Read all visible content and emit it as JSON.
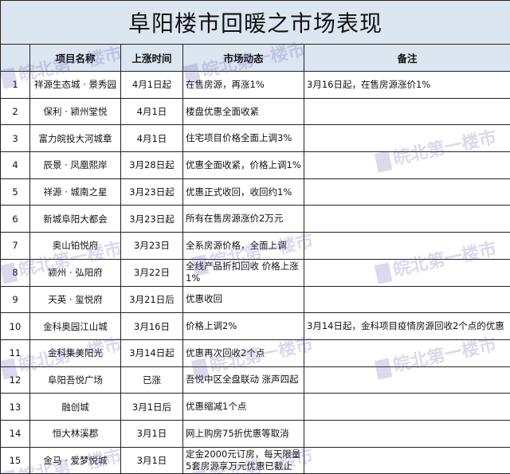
{
  "title": "阜阳楼市回暖之市场表现",
  "headers": [
    "",
    "项目名称",
    "上涨时间",
    "市场动态",
    "备注"
  ],
  "rows": [
    {
      "no": "1",
      "name": "祥源生态城 · 景秀园",
      "time": "4月1日起",
      "status": "在售房源，再涨1%",
      "note": "3月16日起，在售房源涨价1%"
    },
    {
      "no": "2",
      "name": "保利 · 颍州堂悦",
      "time": "4月1日",
      "status": "楼盘优惠全面收紧",
      "note": ""
    },
    {
      "no": "3",
      "name": "富力皖投大河城章",
      "time": "4月1日",
      "status": "住宅项目价格全面上调3%",
      "note": ""
    },
    {
      "no": "4",
      "name": "辰景 · 凤凰熙岸",
      "time": "3月28日起",
      "status": "优惠全面收紧，价格上调1%",
      "note": ""
    },
    {
      "no": "5",
      "name": "祥源 · 城南之星",
      "time": "3月23日起",
      "status": "优惠正式收回，收回约1%",
      "note": ""
    },
    {
      "no": "6",
      "name": "新城阜阳大都会",
      "time": "3月23日起",
      "status": "所有在售房源涨价2万元",
      "note": ""
    },
    {
      "no": "7",
      "name": "奥山铂悦府",
      "time": "3月23日",
      "status": "全系房源价格，全面上调",
      "note": ""
    },
    {
      "no": "8",
      "name": "颍州 · 弘阳府",
      "time": "3月22日",
      "status": "全线产品折扣回收 价格上涨1%",
      "note": ""
    },
    {
      "no": "9",
      "name": "天英 · 玺悦府",
      "time": "3月21日后",
      "status": "优惠收回",
      "note": ""
    },
    {
      "no": "10",
      "name": "金科奥园江山城",
      "time": "3月16日",
      "status": "价格上调2%",
      "note": "3月14日起，金科项目疫情房源回收2个点的优惠"
    },
    {
      "no": "11",
      "name": "金科集美阳光",
      "time": "3月14日起",
      "status": "优惠再次回收2个点",
      "note": ""
    },
    {
      "no": "12",
      "name": "阜阳吾悦广场",
      "time": "已涨",
      "status": "吾悦中区全盘联动 涨声四起",
      "note": ""
    },
    {
      "no": "13",
      "name": "融创城",
      "time": "3月1日后",
      "status": "优惠缩减1个点",
      "note": ""
    },
    {
      "no": "14",
      "name": "恒大林溪郡",
      "time": "3月1日",
      "status": "网上购房75折优惠等取消",
      "note": ""
    },
    {
      "no": "15",
      "name": "金马 · 爱梦悦城",
      "time": "3月1日",
      "status": "定金2000元订房，每天限量5套房源享万元优惠已截止",
      "note": ""
    }
  ],
  "watermark": "皖北第一楼市",
  "colors": {
    "header_bg": "#dce6f1",
    "border": "#222222",
    "watermark": "#5a50aa"
  }
}
